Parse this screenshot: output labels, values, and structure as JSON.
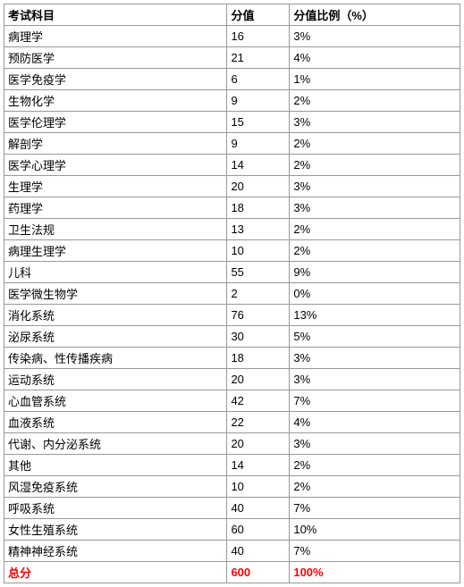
{
  "table": {
    "columns": [
      "考试科目",
      "分值",
      "分值比例（%）"
    ],
    "rows": [
      {
        "subject": "病理学",
        "score": "16",
        "percent": "3%"
      },
      {
        "subject": "预防医学",
        "score": "21",
        "percent": "4%"
      },
      {
        "subject": "医学免疫学",
        "score": "6",
        "percent": "1%"
      },
      {
        "subject": "生物化学",
        "score": "9",
        "percent": "2%"
      },
      {
        "subject": "医学伦理学",
        "score": "15",
        "percent": "3%"
      },
      {
        "subject": "解剖学",
        "score": "9",
        "percent": "2%"
      },
      {
        "subject": "医学心理学",
        "score": "14",
        "percent": "2%"
      },
      {
        "subject": "生理学",
        "score": "20",
        "percent": "3%"
      },
      {
        "subject": "药理学",
        "score": "18",
        "percent": "3%"
      },
      {
        "subject": "卫生法规",
        "score": "13",
        "percent": "2%"
      },
      {
        "subject": "病理生理学",
        "score": "10",
        "percent": "2%"
      },
      {
        "subject": "儿科",
        "score": "55",
        "percent": "9%"
      },
      {
        "subject": "医学微生物学",
        "score": "2",
        "percent": "0%"
      },
      {
        "subject": "消化系统",
        "score": "76",
        "percent": "13%"
      },
      {
        "subject": "泌尿系统",
        "score": "30",
        "percent": "5%"
      },
      {
        "subject": "传染病、性传播疾病",
        "score": "18",
        "percent": "3%"
      },
      {
        "subject": "运动系统",
        "score": "20",
        "percent": "3%"
      },
      {
        "subject": "心血管系统",
        "score": "42",
        "percent": "7%"
      },
      {
        "subject": "血液系统",
        "score": "22",
        "percent": "4%"
      },
      {
        "subject": "代谢、内分泌系统",
        "score": "20",
        "percent": "3%"
      },
      {
        "subject": "其他",
        "score": "14",
        "percent": "2%"
      },
      {
        "subject": "风湿免疫系统",
        "score": "10",
        "percent": "2%"
      },
      {
        "subject": "呼吸系统",
        "score": "40",
        "percent": "7%"
      },
      {
        "subject": "女性生殖系统",
        "score": "60",
        "percent": "10%"
      },
      {
        "subject": "精神神经系统",
        "score": "40",
        "percent": "7%"
      }
    ],
    "total": {
      "subject": "总分",
      "score": "600",
      "percent": "100%"
    },
    "colors": {
      "border": "#999999",
      "text": "#000000",
      "total_text": "#ff0000",
      "background": "#ffffff"
    },
    "column_widths": {
      "subject": 250,
      "score": 70,
      "percent": 191
    },
    "font_size": 13
  }
}
